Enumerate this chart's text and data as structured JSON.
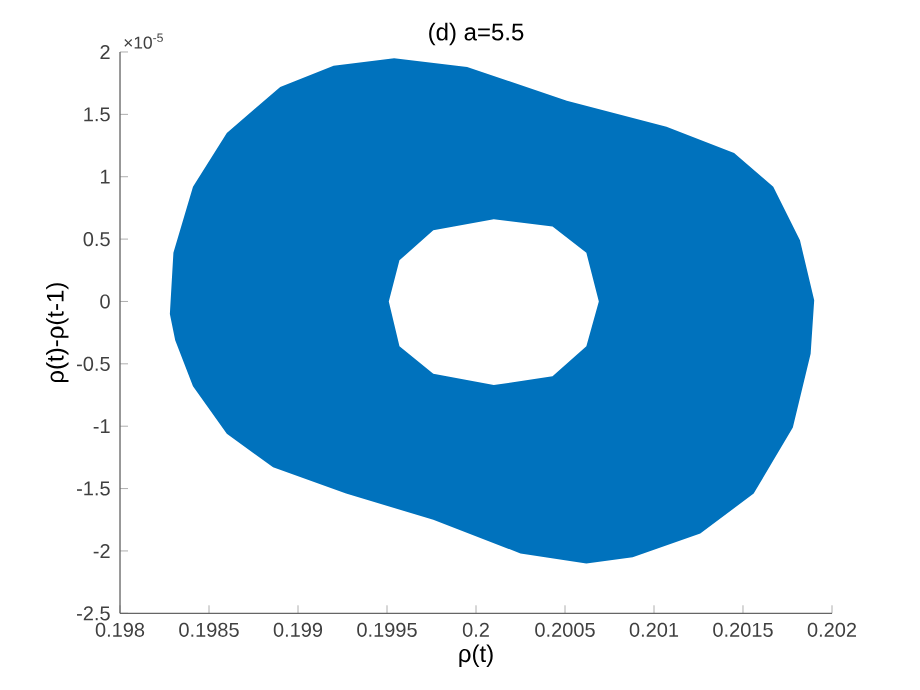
{
  "chart_data": {
    "type": "area",
    "title": "(d) a=5.5",
    "xlabel": "ρ(t)",
    "ylabel": "ρ(t)-ρ(t-1)",
    "annotations": [
      "×10$^{-5}$"
    ],
    "xlim": [
      0.198,
      0.202
    ],
    "ylim": [
      -2.5,
      2
    ],
    "xticks": [
      0.198,
      0.1985,
      0.199,
      0.1995,
      0.2,
      0.2005,
      0.201,
      0.2015,
      0.202
    ],
    "yticks": [
      -2.5,
      -2,
      -1.5,
      -1,
      -0.5,
      0,
      0.5,
      1,
      1.5,
      2
    ],
    "series": [
      {
        "color": "#0072bd",
        "x": [
          0.19828,
          0.1983,
          0.19841,
          0.1986,
          0.1989,
          0.1992,
          0.19954,
          0.19995,
          0.20051,
          0.20107,
          0.20145,
          0.20167,
          0.20182,
          0.2019,
          0.20188,
          0.20178,
          0.20156,
          0.20126,
          0.20088,
          0.20062,
          0.20025,
          0.19976,
          0.19927,
          0.19886,
          0.1986,
          0.19841,
          0.19831,
          null,
          0.19951,
          0.19957,
          0.19976,
          0.2001,
          0.20043,
          0.20062,
          0.20069,
          0.20062,
          0.20043,
          0.2001,
          0.19976,
          0.19957
        ],
        "values": [
          -0.1,
          0.39,
          0.92,
          1.35,
          1.72,
          1.89,
          1.95,
          1.88,
          1.61,
          1.4,
          1.19,
          0.92,
          0.49,
          0.01,
          -0.42,
          -1.01,
          -1.54,
          -1.86,
          -2.05,
          -2.1,
          -2.02,
          -1.75,
          -1.54,
          -1.33,
          -1.06,
          -0.68,
          -0.31,
          null,
          0,
          0.33,
          0.57,
          0.66,
          0.6,
          0.39,
          0,
          -0.36,
          -0.6,
          -0.67,
          -0.58,
          -0.36
        ]
      }
    ]
  }
}
